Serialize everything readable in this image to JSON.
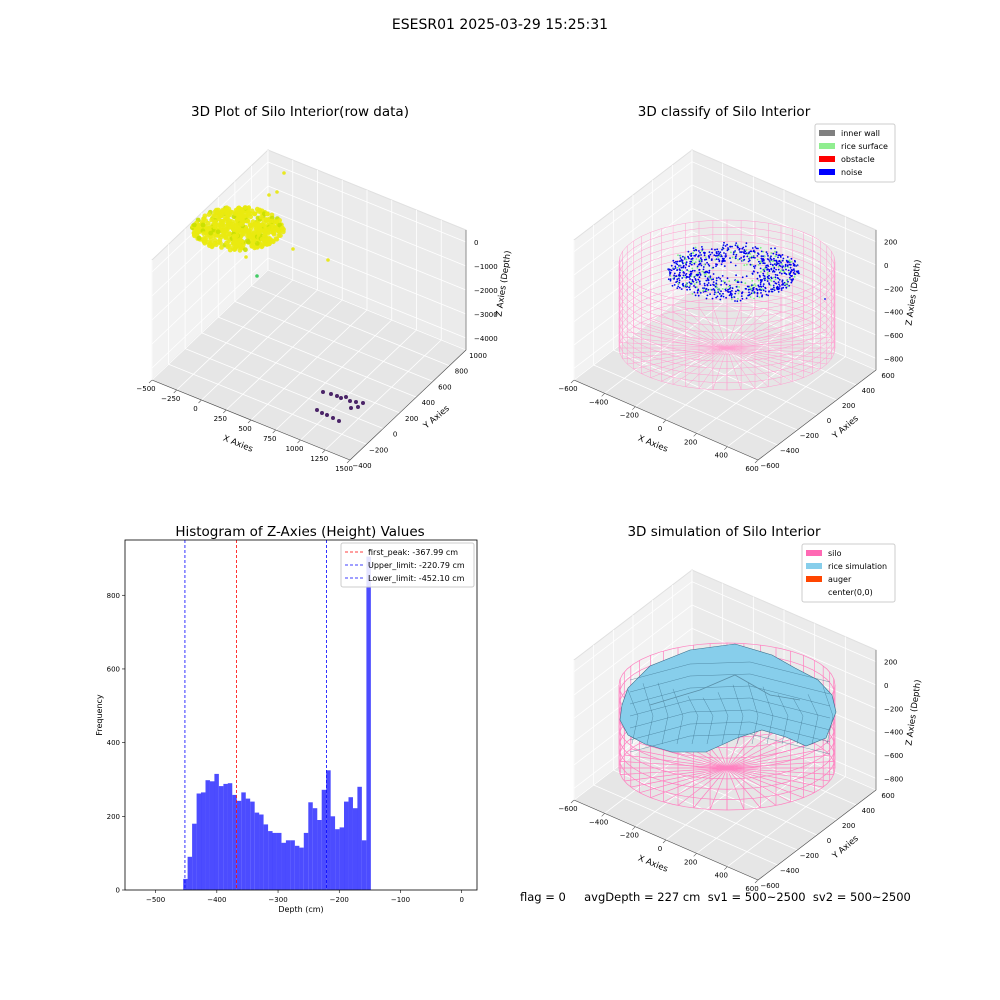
{
  "suptitle": "ESESR01 2025-03-29 15:25:31",
  "footer": "flag = 0     avgDepth = 227 cm  sv1 = 500~2500  sv2 = 500~2500",
  "chart_data": [
    {
      "type": "scatter",
      "title": "3D Plot of Silo Interior(row data)",
      "xlabel": "X Axies",
      "ylabel": "Y Axies",
      "zlabel": "Z Axies (Depth)",
      "xticks": [
        "−500",
        "−250",
        "0",
        "250",
        "500",
        "750",
        "1000",
        "1250",
        "1500"
      ],
      "yticks": [
        "−400",
        "−200",
        "0",
        "200",
        "400",
        "600",
        "800",
        "1000"
      ],
      "zticks": [
        "0",
        "−1000",
        "−2000",
        "−3000",
        "−4000"
      ]
    },
    {
      "type": "scatter",
      "title": "3D classify of Silo Interior",
      "xlabel": "X Axies",
      "ylabel": "Y Axies",
      "zlabel": "Z Axies (Depth)",
      "xticks": [
        "−600",
        "−400",
        "−200",
        "0",
        "200",
        "400",
        "600"
      ],
      "yticks": [
        "−600",
        "−400",
        "−200",
        "0",
        "200",
        "400",
        "600"
      ],
      "zticks": [
        "200",
        "0",
        "−200",
        "−400",
        "−600",
        "−800"
      ],
      "legend": [
        {
          "label": "inner wall",
          "color": "#808080"
        },
        {
          "label": "rice surface",
          "color": "#90ee90"
        },
        {
          "label": "obstacle",
          "color": "#ff0000"
        },
        {
          "label": "noise",
          "color": "#0000ff"
        }
      ],
      "legend_position": "top-right"
    },
    {
      "type": "bar",
      "title": "Histogram of Z-Axies (Height) Values",
      "xlabel": "Depth (cm)",
      "ylabel": "Frequency",
      "xlim": [
        -550,
        25
      ],
      "ylim": [
        0,
        950
      ],
      "xticks": [
        "−500",
        "−400",
        "−300",
        "−200",
        "−100",
        "0"
      ],
      "yticks": [
        "0",
        "200",
        "400",
        "600",
        "800"
      ],
      "bin_width": 7.3,
      "bins_start": -455,
      "values": [
        30,
        90,
        180,
        262,
        265,
        298,
        295,
        315,
        282,
        288,
        290,
        258,
        242,
        265,
        248,
        240,
        210,
        205,
        178,
        160,
        155,
        155,
        128,
        135,
        135,
        120,
        115,
        155,
        238,
        222,
        190,
        272,
        325,
        200,
        165,
        170,
        240,
        252,
        222,
        280,
        135,
        905
      ],
      "color": "#0000ff",
      "vlines": [
        {
          "label": "first_peak: -367.99 cm",
          "x": -367.99,
          "color": "#ff0000"
        },
        {
          "label": "Upper_limit: -220.79 cm",
          "x": -220.79,
          "color": "#0000ff"
        },
        {
          "label": "Lower_limit: -452.10 cm",
          "x": -452.1,
          "color": "#0000ff"
        }
      ],
      "legend_position": "top-right"
    },
    {
      "type": "surface",
      "title": "3D simulation of Silo Interior",
      "xlabel": "X Axies",
      "ylabel": "Y Axies",
      "zlabel": "Z Axies (Depth)",
      "xticks": [
        "−600",
        "−400",
        "−200",
        "0",
        "200",
        "400",
        "600"
      ],
      "yticks": [
        "−600",
        "−400",
        "−200",
        "0",
        "200",
        "400",
        "600"
      ],
      "zticks": [
        "200",
        "0",
        "−200",
        "−400",
        "−600",
        "−800"
      ],
      "legend": [
        {
          "label": "silo",
          "color": "#ff69b4"
        },
        {
          "label": "rice simulation",
          "color": "#87ceeb"
        },
        {
          "label": "auger",
          "color": "#ff4500"
        },
        {
          "label": "center(0,0)",
          "color": ""
        }
      ],
      "legend_position": "top-right"
    }
  ]
}
